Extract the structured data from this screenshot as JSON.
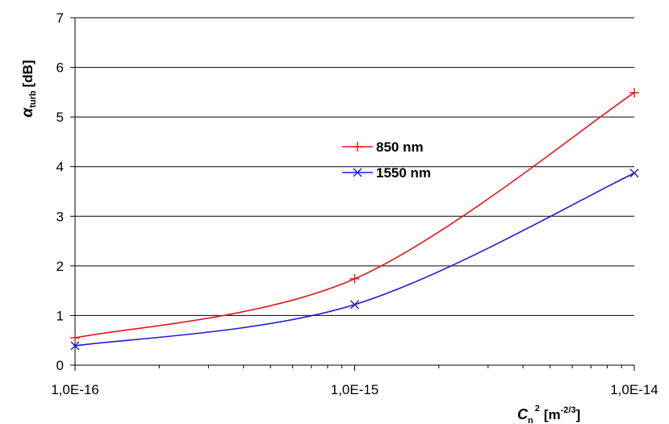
{
  "chart_data": {
    "type": "line",
    "x_scale": "log",
    "x": [
      1e-16,
      1e-15,
      1e-14
    ],
    "x_tick_labels": [
      "1,0E-16",
      "1,0E-15",
      "1,0E-14"
    ],
    "y_ticks": [
      0,
      1,
      2,
      3,
      4,
      5,
      6,
      7
    ],
    "ylim": [
      0,
      7
    ],
    "grid": "horizontal",
    "legend_position": "center",
    "xlabel": {
      "main": "C",
      "sub": "n",
      "sup": "2",
      "unit": "[m",
      "unit_sup": "-2/3",
      "unit_close": "]"
    },
    "ylabel": {
      "main": "α",
      "sub": "turb",
      "unit": "[dB]"
    },
    "series": [
      {
        "name": "850 nm",
        "values": [
          0.55,
          1.74,
          5.49
        ],
        "color": "#e8141c",
        "marker": "plus"
      },
      {
        "name": "1550 nm",
        "values": [
          0.39,
          1.22,
          3.87
        ],
        "color": "#1a1adc",
        "marker": "x"
      }
    ]
  }
}
